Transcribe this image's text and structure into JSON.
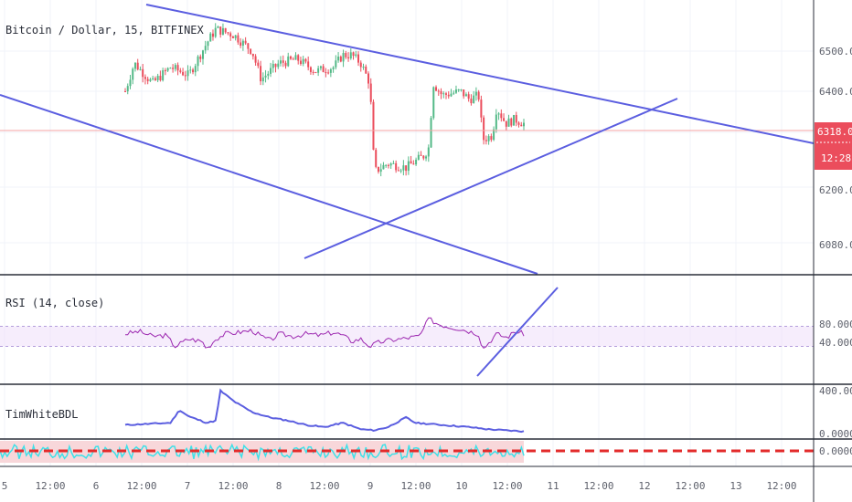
{
  "chart_data": [
    {
      "type": "candlestick",
      "title": "Bitcoin / Dollar, 15, BITFINEX",
      "yticks": [
        "6500.0",
        "6400.0",
        "6300.0",
        "6200.0",
        "6080.0"
      ],
      "ylim": [
        6040,
        6600
      ],
      "last_price": "6318.0",
      "countdown": "12:28",
      "xticks": [
        "5",
        "12:00",
        "6",
        "12:00",
        "7",
        "12:00",
        "8",
        "12:00",
        "9",
        "12:00",
        "10",
        "12:00",
        "11",
        "12:00",
        "12",
        "12:00",
        "13",
        "12:00"
      ],
      "colors": {
        "up": "#53b987",
        "down": "#eb4d5c",
        "trendline": "#5b5ee0",
        "price_line": "#f4a3a3"
      },
      "price_path": [
        [
          0,
          6400
        ],
        [
          2,
          6470
        ],
        [
          6,
          6420
        ],
        [
          10,
          6460
        ],
        [
          14,
          6440
        ],
        [
          18,
          6520
        ],
        [
          20,
          6555
        ],
        [
          24,
          6540
        ],
        [
          28,
          6500
        ],
        [
          30,
          6430
        ],
        [
          34,
          6470
        ],
        [
          38,
          6480
        ],
        [
          42,
          6450
        ],
        [
          46,
          6460
        ],
        [
          48,
          6490
        ],
        [
          50,
          6490
        ],
        [
          52,
          6470
        ],
        [
          54,
          6420
        ],
        [
          55,
          6200
        ],
        [
          58,
          6220
        ],
        [
          62,
          6210
        ],
        [
          64,
          6225
        ],
        [
          66,
          6240
        ],
        [
          67,
          6260
        ],
        [
          68,
          6420
        ],
        [
          70,
          6390
        ],
        [
          74,
          6400
        ],
        [
          76,
          6380
        ],
        [
          78,
          6390
        ],
        [
          79,
          6280
        ],
        [
          81,
          6290
        ],
        [
          82,
          6360
        ],
        [
          84,
          6320
        ],
        [
          86,
          6330
        ],
        [
          88,
          6320
        ]
      ]
    },
    {
      "type": "line",
      "title": "RSI (14, close)",
      "yticks": [
        "80.0000",
        "40.0000"
      ],
      "ylim": [
        10,
        95
      ],
      "band": [
        30,
        70
      ],
      "colors": {
        "line": "#9c27b0",
        "band": "#f0e1fa",
        "trendline": "#5b5ee0"
      },
      "rsi_path": [
        [
          0,
          55
        ],
        [
          3,
          60
        ],
        [
          6,
          50
        ],
        [
          9,
          52
        ],
        [
          11,
          30
        ],
        [
          14,
          45
        ],
        [
          17,
          40
        ],
        [
          18,
          25
        ],
        [
          20,
          45
        ],
        [
          22,
          55
        ],
        [
          25,
          58
        ],
        [
          28,
          62
        ],
        [
          30,
          50
        ],
        [
          32,
          42
        ],
        [
          34,
          55
        ],
        [
          37,
          50
        ],
        [
          40,
          55
        ],
        [
          43,
          52
        ],
        [
          46,
          58
        ],
        [
          48,
          52
        ],
        [
          50,
          40
        ],
        [
          52,
          45
        ],
        [
          54,
          30
        ],
        [
          56,
          38
        ],
        [
          58,
          42
        ],
        [
          61,
          45
        ],
        [
          63,
          48
        ],
        [
          65,
          50
        ],
        [
          67,
          85
        ],
        [
          69,
          75
        ],
        [
          71,
          70
        ],
        [
          74,
          65
        ],
        [
          76,
          60
        ],
        [
          78,
          55
        ],
        [
          79,
          25
        ],
        [
          80,
          35
        ],
        [
          82,
          55
        ],
        [
          84,
          48
        ],
        [
          85,
          52
        ],
        [
          86,
          60
        ],
        [
          88,
          55
        ]
      ]
    },
    {
      "type": "area",
      "title": "TimWhiteBDL",
      "yticks": [
        "400.0000",
        "0.0000"
      ],
      "ylim": [
        -20,
        420
      ],
      "colors": {
        "line": "#5b5ee0"
      },
      "bdl_path": [
        [
          0,
          80
        ],
        [
          10,
          100
        ],
        [
          12,
          220
        ],
        [
          14,
          160
        ],
        [
          18,
          100
        ],
        [
          20,
          120
        ],
        [
          21,
          400
        ],
        [
          24,
          300
        ],
        [
          28,
          200
        ],
        [
          32,
          150
        ],
        [
          36,
          120
        ],
        [
          40,
          80
        ],
        [
          44,
          60
        ],
        [
          48,
          100
        ],
        [
          52,
          40
        ],
        [
          55,
          30
        ],
        [
          58,
          60
        ],
        [
          62,
          150
        ],
        [
          64,
          100
        ],
        [
          70,
          80
        ],
        [
          76,
          60
        ],
        [
          80,
          40
        ],
        [
          84,
          30
        ],
        [
          88,
          20
        ]
      ]
    },
    {
      "type": "line",
      "yticks": [
        "0.0000"
      ],
      "colors": {
        "cyan": "#3fe0e8",
        "red": "#e32b2b",
        "bg": "#f8d7da"
      }
    }
  ]
}
